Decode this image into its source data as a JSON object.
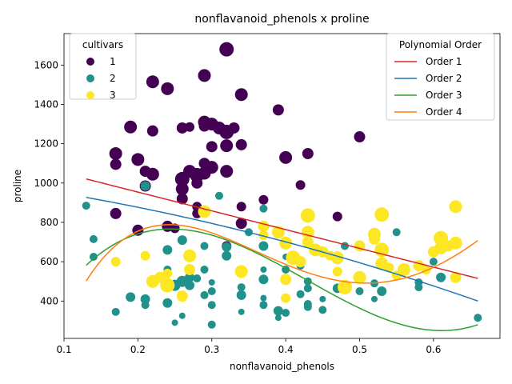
{
  "chart_data": {
    "type": "scatter",
    "title": "nonflavanoid_phenols x proline",
    "xlabel": "nonflavanoid_phenols",
    "ylabel": "proline",
    "xlim": [
      0.1,
      0.69
    ],
    "ylim": [
      210,
      1760
    ],
    "xticks": [
      0.1,
      0.2,
      0.3,
      0.4,
      0.5,
      0.6
    ],
    "xtick_labels": [
      "0.1",
      "0.2",
      "0.3",
      "0.4",
      "0.5",
      "0.6"
    ],
    "yticks": [
      400,
      600,
      800,
      1000,
      1200,
      1400,
      1600
    ],
    "ytick_labels": [
      "400",
      "600",
      "800",
      "1000",
      "1200",
      "1400",
      "1600"
    ],
    "grid": false,
    "hue_legend": {
      "title": "cultivars",
      "position": "top-left",
      "entries": [
        {
          "label": "1",
          "color": "#440154"
        },
        {
          "label": "2",
          "color": "#21918c"
        },
        {
          "label": "3",
          "color": "#fde725"
        }
      ]
    },
    "fit_legend": {
      "title": "Polynomial Order",
      "position": "top-right",
      "entries": [
        {
          "label": "Order 1",
          "color": "#d62728"
        },
        {
          "label": "Order 2",
          "color": "#1f77b4"
        },
        {
          "label": "Order 3",
          "color": "#2ca02c"
        },
        {
          "label": "Order 4",
          "color": "#ff7f0e"
        }
      ]
    },
    "series": [
      {
        "name": "1",
        "color": "#440154",
        "points": [
          [
            0.32,
            1680,
            18
          ],
          [
            0.22,
            1515,
            16
          ],
          [
            0.24,
            1480,
            16
          ],
          [
            0.29,
            1547,
            16
          ],
          [
            0.34,
            1450,
            16
          ],
          [
            0.39,
            1372,
            14
          ],
          [
            0.19,
            1285,
            16
          ],
          [
            0.22,
            1265,
            14
          ],
          [
            0.26,
            1280,
            14
          ],
          [
            0.27,
            1285,
            12
          ],
          [
            0.29,
            1310,
            16
          ],
          [
            0.3,
            1300,
            16
          ],
          [
            0.31,
            1280,
            16
          ],
          [
            0.32,
            1260,
            18
          ],
          [
            0.33,
            1280,
            14
          ],
          [
            0.29,
            1290,
            14
          ],
          [
            0.3,
            1185,
            14
          ],
          [
            0.32,
            1190,
            16
          ],
          [
            0.34,
            1195,
            14
          ],
          [
            0.4,
            1130,
            16
          ],
          [
            0.43,
            1150,
            14
          ],
          [
            0.5,
            1235,
            14
          ],
          [
            0.17,
            1150,
            16
          ],
          [
            0.17,
            1095,
            14
          ],
          [
            0.2,
            1120,
            16
          ],
          [
            0.21,
            1060,
            14
          ],
          [
            0.22,
            1045,
            16
          ],
          [
            0.26,
            1020,
            18
          ],
          [
            0.27,
            1060,
            16
          ],
          [
            0.28,
            1040,
            18
          ],
          [
            0.29,
            1050,
            16
          ],
          [
            0.3,
            1080,
            16
          ],
          [
            0.29,
            1100,
            14
          ],
          [
            0.32,
            1060,
            16
          ],
          [
            0.28,
            1000,
            14
          ],
          [
            0.26,
            970,
            16
          ],
          [
            0.26,
            920,
            14
          ],
          [
            0.21,
            985,
            14
          ],
          [
            0.37,
            915,
            12
          ],
          [
            0.42,
            990,
            12
          ],
          [
            0.28,
            880,
            12
          ],
          [
            0.28,
            845,
            12
          ],
          [
            0.34,
            880,
            12
          ],
          [
            0.17,
            845,
            14
          ],
          [
            0.2,
            760,
            14
          ],
          [
            0.24,
            780,
            14
          ],
          [
            0.25,
            770,
            12
          ],
          [
            0.34,
            795,
            14
          ],
          [
            0.47,
            830,
            12
          ],
          [
            0.32,
            680,
            12
          ]
        ]
      },
      {
        "name": "2",
        "color": "#21918c",
        "points": [
          [
            0.13,
            885,
            10
          ],
          [
            0.14,
            715,
            10
          ],
          [
            0.14,
            625,
            10
          ],
          [
            0.21,
            985,
            12
          ],
          [
            0.24,
            660,
            12
          ],
          [
            0.26,
            710,
            12
          ],
          [
            0.31,
            935,
            10
          ],
          [
            0.37,
            870,
            10
          ],
          [
            0.29,
            680,
            10
          ],
          [
            0.32,
            630,
            12
          ],
          [
            0.32,
            675,
            12
          ],
          [
            0.35,
            750,
            10
          ],
          [
            0.37,
            680,
            12
          ],
          [
            0.24,
            560,
            10
          ],
          [
            0.26,
            500,
            14
          ],
          [
            0.27,
            520,
            12
          ],
          [
            0.28,
            515,
            10
          ],
          [
            0.27,
            480,
            12
          ],
          [
            0.29,
            560,
            10
          ],
          [
            0.3,
            495,
            8
          ],
          [
            0.23,
            520,
            12
          ],
          [
            0.22,
            510,
            10
          ],
          [
            0.25,
            480,
            14
          ],
          [
            0.26,
            430,
            10
          ],
          [
            0.29,
            430,
            10
          ],
          [
            0.3,
            450,
            10
          ],
          [
            0.34,
            430,
            12
          ],
          [
            0.34,
            470,
            10
          ],
          [
            0.37,
            510,
            12
          ],
          [
            0.37,
            560,
            8
          ],
          [
            0.4,
            560,
            10
          ],
          [
            0.4,
            625,
            8
          ],
          [
            0.42,
            580,
            10
          ],
          [
            0.43,
            500,
            10
          ],
          [
            0.43,
            465,
            10
          ],
          [
            0.45,
            410,
            8
          ],
          [
            0.19,
            420,
            12
          ],
          [
            0.21,
            410,
            12
          ],
          [
            0.21,
            380,
            10
          ],
          [
            0.24,
            390,
            12
          ],
          [
            0.17,
            345,
            10
          ],
          [
            0.25,
            290,
            8
          ],
          [
            0.26,
            325,
            8
          ],
          [
            0.3,
            380,
            10
          ],
          [
            0.3,
            280,
            10
          ],
          [
            0.34,
            345,
            8
          ],
          [
            0.37,
            380,
            10
          ],
          [
            0.37,
            415,
            8
          ],
          [
            0.39,
            350,
            12
          ],
          [
            0.39,
            315,
            8
          ],
          [
            0.4,
            340,
            10
          ],
          [
            0.42,
            435,
            10
          ],
          [
            0.43,
            385,
            10
          ],
          [
            0.43,
            370,
            10
          ],
          [
            0.45,
            355,
            10
          ],
          [
            0.47,
            465,
            12
          ],
          [
            0.48,
            680,
            10
          ],
          [
            0.5,
            450,
            10
          ],
          [
            0.52,
            410,
            8
          ],
          [
            0.52,
            490,
            10
          ],
          [
            0.53,
            450,
            12
          ],
          [
            0.55,
            750,
            10
          ],
          [
            0.58,
            470,
            10
          ],
          [
            0.58,
            495,
            10
          ],
          [
            0.6,
            600,
            10
          ],
          [
            0.61,
            520,
            12
          ],
          [
            0.66,
            315,
            10
          ]
        ]
      },
      {
        "name": "3",
        "color": "#fde725",
        "points": [
          [
            0.17,
            600,
            12
          ],
          [
            0.21,
            630,
            12
          ],
          [
            0.22,
            500,
            16
          ],
          [
            0.23,
            520,
            14
          ],
          [
            0.24,
            480,
            18
          ],
          [
            0.24,
            540,
            12
          ],
          [
            0.26,
            425,
            14
          ],
          [
            0.27,
            630,
            16
          ],
          [
            0.27,
            560,
            14
          ],
          [
            0.29,
            855,
            16
          ],
          [
            0.34,
            550,
            16
          ],
          [
            0.37,
            780,
            14
          ],
          [
            0.37,
            735,
            12
          ],
          [
            0.39,
            750,
            16
          ],
          [
            0.4,
            695,
            16
          ],
          [
            0.4,
            510,
            14
          ],
          [
            0.4,
            415,
            12
          ],
          [
            0.41,
            620,
            18
          ],
          [
            0.42,
            600,
            14
          ],
          [
            0.43,
            835,
            18
          ],
          [
            0.43,
            750,
            16
          ],
          [
            0.43,
            700,
            14
          ],
          [
            0.44,
            660,
            16
          ],
          [
            0.45,
            650,
            14
          ],
          [
            0.46,
            630,
            12
          ],
          [
            0.47,
            620,
            16
          ],
          [
            0.47,
            550,
            12
          ],
          [
            0.48,
            470,
            18
          ],
          [
            0.48,
            480,
            14
          ],
          [
            0.5,
            680,
            14
          ],
          [
            0.5,
            520,
            16
          ],
          [
            0.52,
            740,
            16
          ],
          [
            0.52,
            715,
            14
          ],
          [
            0.53,
            840,
            18
          ],
          [
            0.53,
            660,
            18
          ],
          [
            0.53,
            590,
            16
          ],
          [
            0.54,
            570,
            12
          ],
          [
            0.56,
            560,
            16
          ],
          [
            0.58,
            580,
            14
          ],
          [
            0.59,
            560,
            12
          ],
          [
            0.6,
            650,
            14
          ],
          [
            0.61,
            720,
            18
          ],
          [
            0.61,
            670,
            16
          ],
          [
            0.62,
            680,
            14
          ],
          [
            0.63,
            880,
            16
          ],
          [
            0.63,
            695,
            16
          ],
          [
            0.63,
            520,
            14
          ],
          [
            0.55,
            530,
            12
          ]
        ]
      }
    ],
    "fits": [
      {
        "name": "Order 1",
        "color": "#d62728",
        "coeffs": [
          1144.89,
          -954.03
        ],
        "x_range": [
          0.13,
          0.66
        ]
      },
      {
        "name": "Order 2",
        "color": "#1f77b4",
        "coeffs": [
          1004.7,
          -519.87,
          -600.01
        ],
        "x_range": [
          0.13,
          0.66
        ]
      },
      {
        "name": "Order 3",
        "color": "#2ca02c",
        "coeffs": [
          -236.35,
          9452.11,
          -27030.43,
          21051.52
        ],
        "x_range": [
          0.13,
          0.66
        ]
      },
      {
        "name": "Order 4",
        "color": "#ff7f0e",
        "coeffs": [
          -1087.11,
          20002.48,
          -71964.13,
          99020.34,
          -44939.15
        ],
        "x_range": [
          0.13,
          0.66
        ]
      }
    ]
  }
}
